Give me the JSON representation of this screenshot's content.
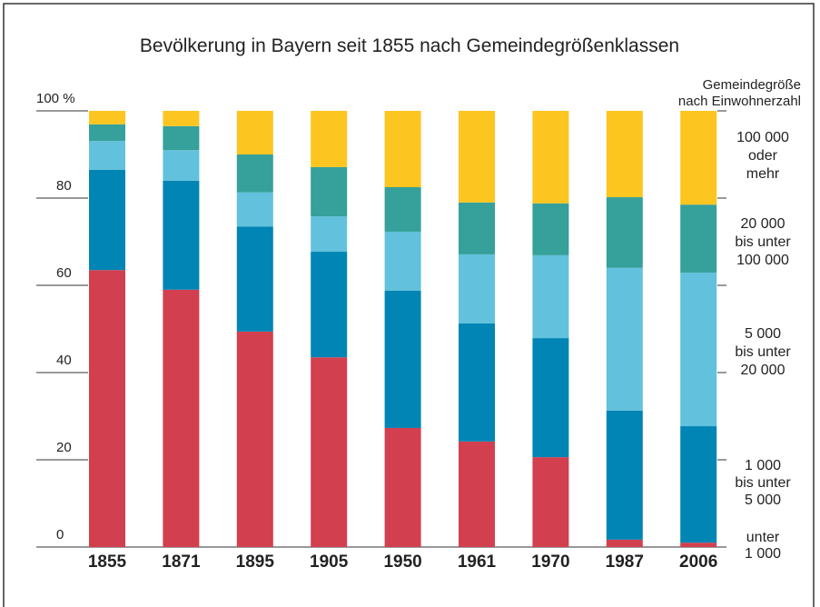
{
  "chart_data": {
    "type": "stacked_bar",
    "title": "Bevölkerung in Bayern seit 1855 nach Gemeindegrößenklassen",
    "legend_title": [
      "Gemeindegröße",
      "nach Einwohnerzahl"
    ],
    "categories": [
      "1855",
      "1871",
      "1895",
      "1905",
      "1950",
      "1961",
      "1970",
      "1987",
      "2006"
    ],
    "series": [
      {
        "name": [
          "unter",
          "1 000"
        ],
        "color": "#d23f4e",
        "values": [
          63.5,
          59.0,
          49.4,
          43.5,
          27.3,
          24.2,
          20.6,
          1.7,
          1.0
        ]
      },
      {
        "name": [
          "1 000",
          "bis unter",
          "5 000"
        ],
        "color": "#0085b5",
        "values": [
          23.0,
          25.0,
          24.1,
          24.2,
          31.5,
          27.1,
          27.3,
          29.6,
          26.7
        ]
      },
      {
        "name": [
          "5 000",
          "bis unter",
          "20 000"
        ],
        "color": "#62c1dd",
        "values": [
          6.6,
          7.0,
          7.8,
          8.1,
          13.5,
          15.8,
          19.0,
          32.7,
          35.2
        ]
      },
      {
        "name": [
          "20 000",
          "bis unter",
          "100 000"
        ],
        "color": "#36a09a",
        "values": [
          3.8,
          5.5,
          8.7,
          11.3,
          10.2,
          11.9,
          11.9,
          16.2,
          15.6
        ]
      },
      {
        "name": [
          "100 000",
          "oder",
          "mehr"
        ],
        "color": "#fdc520",
        "values": [
          3.1,
          3.5,
          10.0,
          12.9,
          17.5,
          21.0,
          21.2,
          19.8,
          21.5
        ]
      }
    ],
    "ylim": [
      0,
      100
    ],
    "yticks": [
      0,
      20,
      40,
      60,
      80,
      {
        "value": 100,
        "label": "100 %"
      }
    ]
  }
}
